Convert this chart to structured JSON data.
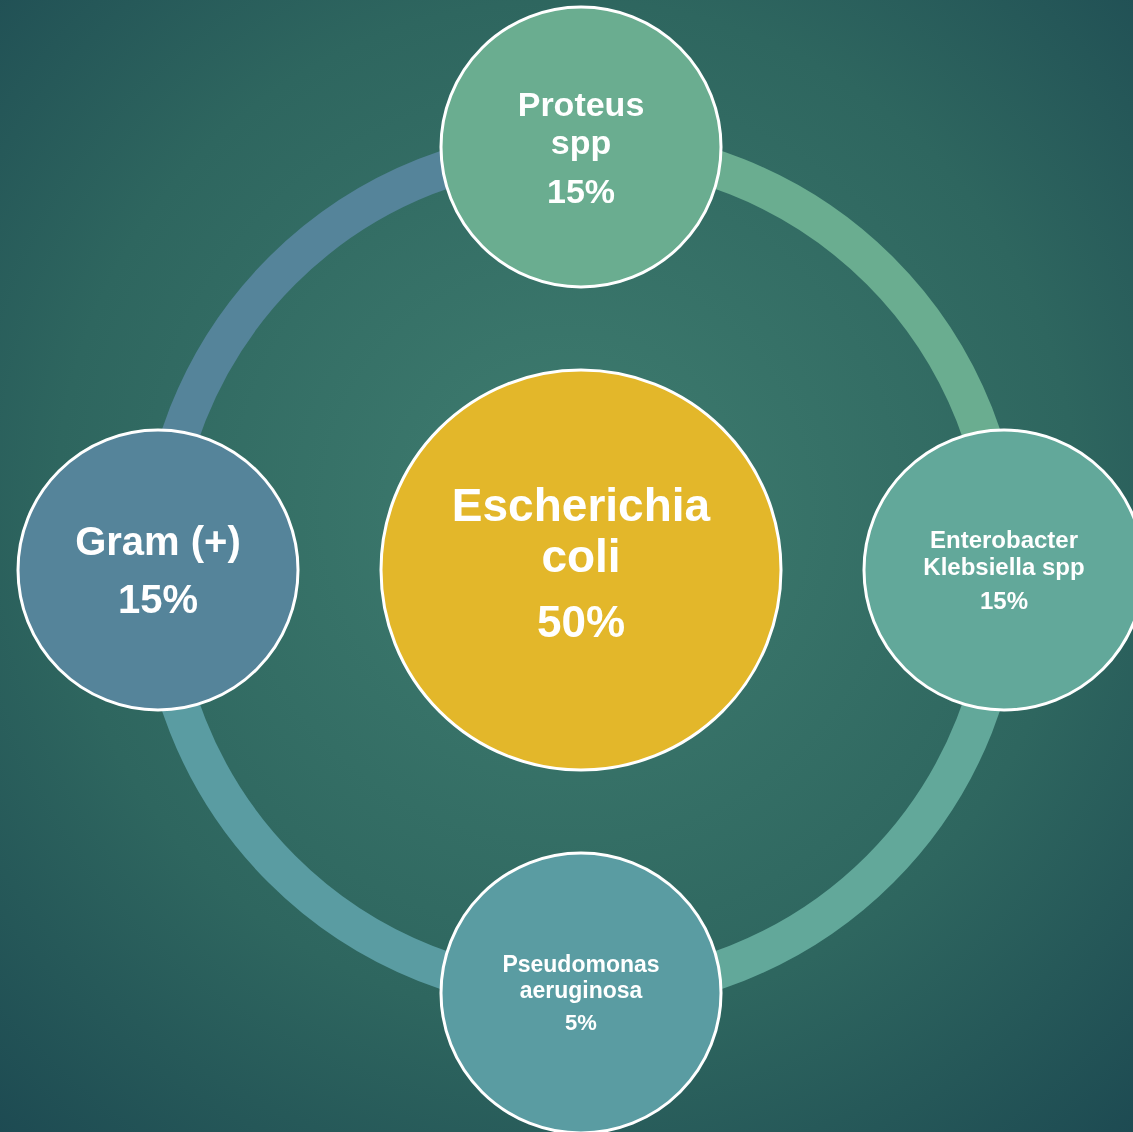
{
  "chart_data": {
    "type": "other",
    "categories": [
      "Escherichia coli",
      "Proteus spp",
      "Enterobacter Klebsiella spp",
      "Pseudomonas aeruginosa",
      "Gram (+)"
    ],
    "values": [
      50,
      15,
      15,
      5,
      15
    ],
    "value_labels": [
      "50%",
      "15%",
      "15%",
      "5%",
      "15%"
    ],
    "colors": [
      "#e3b72a",
      "#6aad90",
      "#62a89a",
      "#5a9ca2",
      "#55849a"
    ]
  }
}
